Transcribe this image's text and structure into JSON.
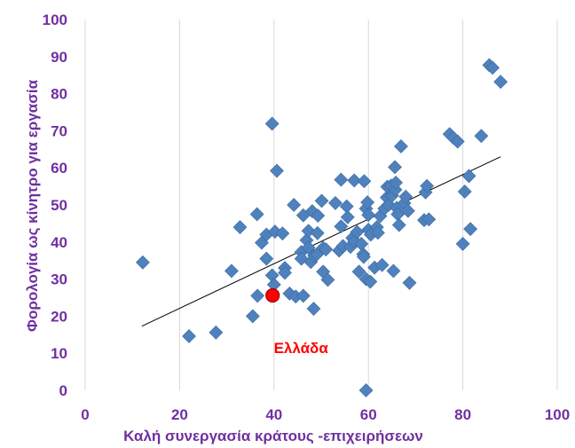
{
  "chart_data": {
    "type": "scatter",
    "xlabel": "Καλή συνεργασία κράτους -επιχειρήσεων",
    "ylabel": "Φορολογία ως κίνητρο για εργασία",
    "xlim": [
      0,
      100
    ],
    "ylim": [
      0,
      100
    ],
    "x_ticks": [
      0,
      20,
      40,
      60,
      80,
      100
    ],
    "y_ticks": [
      0,
      10,
      20,
      30,
      40,
      50,
      60,
      70,
      80,
      90,
      100
    ],
    "grid": "vertical",
    "colors": {
      "points": "#4F81BD",
      "highlight": "#FF0000",
      "trendline": "#000000",
      "text": "#7030A0",
      "grid": "#D9D9D9"
    },
    "trendline": {
      "x": [
        12,
        88
      ],
      "y": [
        17.3,
        63
      ]
    },
    "highlight": {
      "label": "Ελλάδα",
      "x": 39.7,
      "y": 25.6
    },
    "points": [
      [
        12.2,
        34.5
      ],
      [
        22.0,
        14.6
      ],
      [
        27.7,
        15.6
      ],
      [
        31.0,
        32.2
      ],
      [
        32.8,
        44.0
      ],
      [
        35.5,
        20.0
      ],
      [
        36.4,
        47.5
      ],
      [
        36.5,
        25.5
      ],
      [
        37.4,
        39.8
      ],
      [
        38.4,
        35.5
      ],
      [
        38.4,
        42.0
      ],
      [
        39.6,
        71.9
      ],
      [
        39.6,
        31.0
      ],
      [
        40.0,
        28.5
      ],
      [
        40.2,
        42.8
      ],
      [
        40.6,
        59.2
      ],
      [
        41.8,
        42.3
      ],
      [
        42.3,
        33.0
      ],
      [
        42.3,
        31.7
      ],
      [
        43.3,
        26.1
      ],
      [
        44.2,
        50.0
      ],
      [
        44.6,
        25.3
      ],
      [
        45.8,
        37.3
      ],
      [
        45.8,
        35.5
      ],
      [
        46.2,
        47.2
      ],
      [
        46.2,
        25.5
      ],
      [
        46.9,
        40.5
      ],
      [
        47.3,
        38.5
      ],
      [
        47.3,
        43.0
      ],
      [
        47.8,
        34.6
      ],
      [
        48.1,
        48.3
      ],
      [
        48.4,
        22.0
      ],
      [
        48.5,
        36.3
      ],
      [
        49.1,
        36.7
      ],
      [
        49.2,
        42.4
      ],
      [
        49.3,
        47.1
      ],
      [
        50.1,
        51.1
      ],
      [
        50.4,
        38.4
      ],
      [
        50.4,
        32.0
      ],
      [
        51.0,
        38.0
      ],
      [
        51.4,
        29.8
      ],
      [
        53.0,
        50.5
      ],
      [
        53.8,
        37.7
      ],
      [
        54.2,
        56.8
      ],
      [
        54.2,
        44.2
      ],
      [
        54.6,
        38.9
      ],
      [
        55.4,
        49.6
      ],
      [
        55.6,
        46.7
      ],
      [
        56.2,
        38.7
      ],
      [
        56.6,
        41.1
      ],
      [
        57.0,
        40.1
      ],
      [
        57.0,
        56.6
      ],
      [
        57.6,
        42.7
      ],
      [
        58.0,
        32.0
      ],
      [
        58.5,
        39.5
      ],
      [
        58.9,
        36.7
      ],
      [
        59.0,
        36.0
      ],
      [
        59.1,
        56.4
      ],
      [
        59.5,
        49.0
      ],
      [
        59.5,
        30.0
      ],
      [
        59.5,
        0.0
      ],
      [
        59.8,
        50.7
      ],
      [
        60.0,
        47.3
      ],
      [
        60.0,
        43.3
      ],
      [
        60.4,
        29.3
      ],
      [
        60.5,
        42.0
      ],
      [
        61.3,
        33.1
      ],
      [
        61.8,
        44.0
      ],
      [
        62.0,
        42.5
      ],
      [
        62.5,
        47.0
      ],
      [
        62.9,
        33.8
      ],
      [
        63.4,
        49.0
      ],
      [
        63.9,
        52.0
      ],
      [
        64.0,
        54.9
      ],
      [
        64.3,
        50.0
      ],
      [
        64.8,
        55.2
      ],
      [
        65.0,
        52.5
      ],
      [
        65.3,
        32.2
      ],
      [
        65.6,
        60.2
      ],
      [
        65.7,
        54.1
      ],
      [
        65.8,
        56.0
      ],
      [
        66.0,
        49.2
      ],
      [
        66.2,
        47.5
      ],
      [
        66.5,
        44.6
      ],
      [
        66.9,
        65.8
      ],
      [
        67.6,
        50.5
      ],
      [
        67.9,
        52.2
      ],
      [
        68.4,
        48.4
      ],
      [
        68.7,
        29.0
      ],
      [
        71.8,
        45.9
      ],
      [
        72.1,
        53.4
      ],
      [
        72.4,
        55.1
      ],
      [
        72.8,
        46.1
      ],
      [
        77.2,
        69.1
      ],
      [
        78.0,
        68.1
      ],
      [
        78.9,
        67.1
      ],
      [
        80.0,
        39.5
      ],
      [
        80.4,
        53.6
      ],
      [
        81.3,
        57.8
      ],
      [
        81.6,
        43.5
      ],
      [
        83.9,
        68.6
      ],
      [
        85.6,
        87.7
      ],
      [
        86.3,
        87.0
      ],
      [
        88.0,
        83.2
      ]
    ]
  }
}
